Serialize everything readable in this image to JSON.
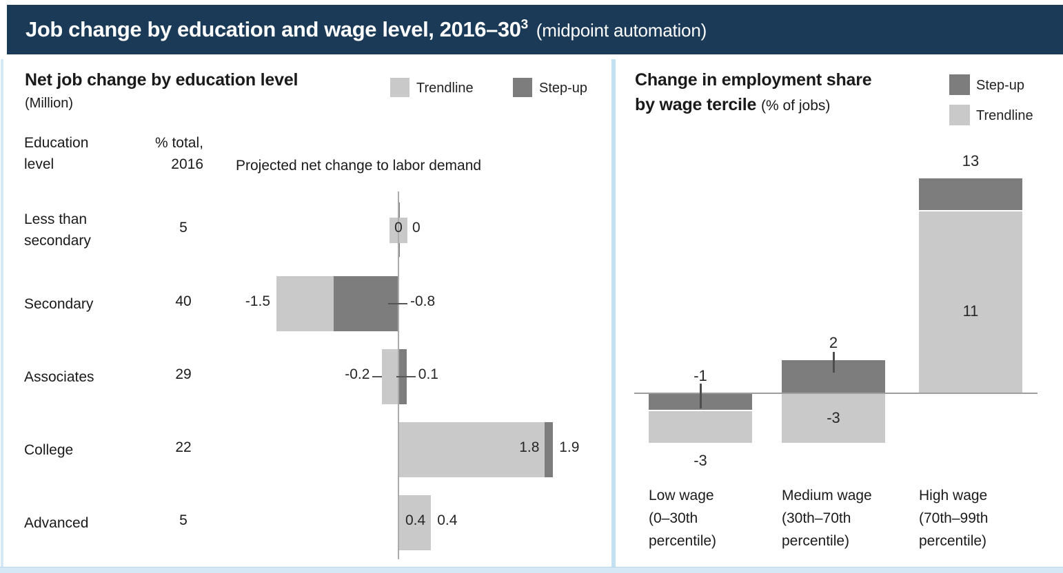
{
  "header": {
    "title": "Job change by education and wage level, 2016–30",
    "title_superscript": "3",
    "note": "(midpoint automation)"
  },
  "colors": {
    "header_bg": "#1b3a57",
    "trendline": "#c9c9c9",
    "stepup": "#7d7d7d",
    "panel_accent": "#d4e8f5",
    "divider": "#c3e1f3",
    "axis": "#ababab",
    "tick": "#555555"
  },
  "chart_data": [
    {
      "type": "bar",
      "orientation": "horizontal",
      "title": "Net job change by education level",
      "subtitle": "(Million)",
      "legend_position": "top-right",
      "legend": [
        {
          "name": "Trendline"
        },
        {
          "name": "Step-up"
        }
      ],
      "columns": {
        "education": [
          "Education",
          "level"
        ],
        "pct": [
          "% total,",
          "2016"
        ],
        "projected": "Projected net change to labor demand"
      },
      "categories": [
        "Less than secondary",
        "Secondary",
        "Associates",
        "College",
        "Advanced"
      ],
      "pct_total_2016": [
        5,
        40,
        29,
        22,
        5
      ],
      "series": [
        {
          "name": "Trendline",
          "values": [
            0,
            -1.5,
            -0.2,
            1.8,
            0.4
          ]
        },
        {
          "name": "Step-up",
          "values": [
            0,
            -0.8,
            0.1,
            1.9,
            0.4
          ]
        }
      ],
      "xlim": [
        -2,
        2.5
      ],
      "grid": false,
      "rows": [
        {
          "label_lines": [
            "Less than",
            "secondary"
          ],
          "pct": "5",
          "trendline": 0,
          "stepup": 0,
          "trend_label": "0",
          "step_label": "0",
          "step_tick": true
        },
        {
          "label_lines": [
            "Secondary"
          ],
          "pct": "40",
          "trendline": -1.5,
          "stepup": -0.8,
          "trend_label": "-1.5",
          "step_label": "-0.8",
          "step_tick": true
        },
        {
          "label_lines": [
            "Associates"
          ],
          "pct": "29",
          "trendline": -0.2,
          "stepup": 0.1,
          "trend_label": "-0.2",
          "step_label": "0.1",
          "trend_tick": true,
          "step_tick": true
        },
        {
          "label_lines": [
            "College"
          ],
          "pct": "22",
          "trendline": 1.8,
          "stepup": 1.9,
          "trend_label": "1.8",
          "step_label": "1.9"
        },
        {
          "label_lines": [
            "Advanced"
          ],
          "pct": "5",
          "trendline": 0.4,
          "stepup": 0.4,
          "trend_label": "0.4",
          "step_label": "0.4"
        }
      ]
    },
    {
      "type": "bar",
      "orientation": "vertical",
      "title": "Change in employment share by wage tercile",
      "subtitle": "(% of jobs)",
      "display": {
        "title_line1": "Change in employment share",
        "title_line2_bold": "by wage tercile ",
        "title_line2_note": "(% of jobs)"
      },
      "legend_position": "top-right",
      "legend": [
        {
          "name": "Step-up"
        },
        {
          "name": "Trendline"
        }
      ],
      "categories": [
        "Low wage (0–30th percentile)",
        "Medium wage (30th–70th percentile)",
        "High wage (70th–99th percentile)"
      ],
      "series": [
        {
          "name": "Step-up",
          "values": [
            -1,
            2,
            13
          ]
        },
        {
          "name": "Trendline",
          "values": [
            -3,
            -3,
            11
          ]
        }
      ],
      "ylim": [
        -4,
        14
      ],
      "grid": false,
      "bars": [
        {
          "label_lines": [
            "Low wage",
            "(0–30th",
            "percentile)"
          ],
          "trendline": -3,
          "stepup": -1,
          "trend_label": "-3",
          "step_label": "-1",
          "step_tick": true
        },
        {
          "label_lines": [
            "Medium wage",
            "(30th–70th",
            "percentile)"
          ],
          "trendline": -3,
          "stepup": 2,
          "trend_label": "-3",
          "step_label": "2",
          "step_tick": true
        },
        {
          "label_lines": [
            "High wage",
            "(70th–99th",
            "percentile)"
          ],
          "trendline": 11,
          "stepup": 13,
          "trend_label": "11",
          "step_label": "13"
        }
      ]
    }
  ]
}
